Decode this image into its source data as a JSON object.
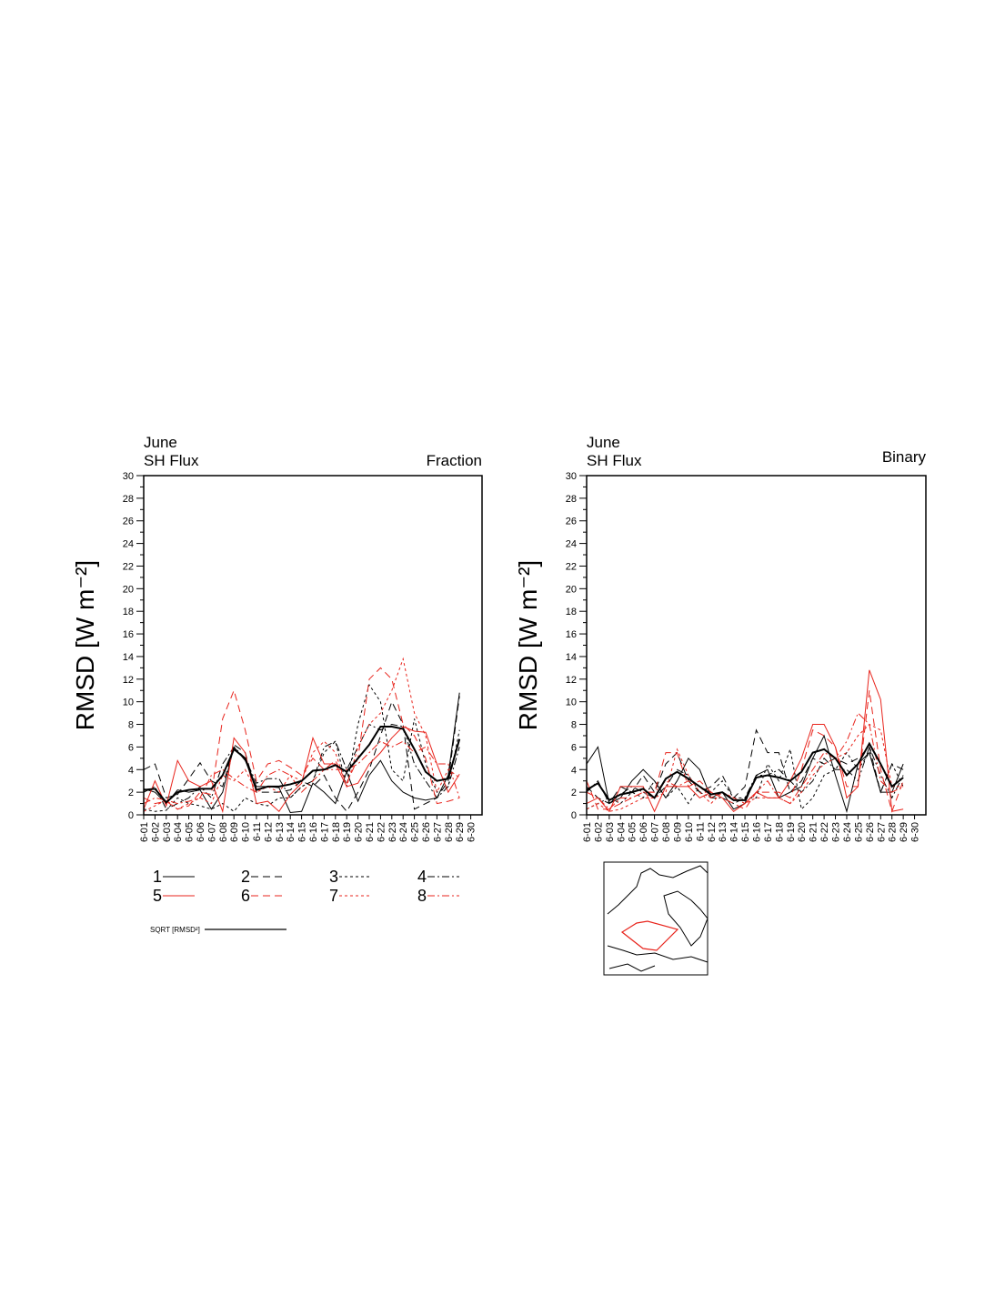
{
  "chart_data": [
    {
      "type": "line",
      "title": "June",
      "subtitle": "SH Flux",
      "right_title": "Fraction",
      "y_label": "RMSD [W m⁻²]",
      "categories": [
        "6-01",
        "6-02",
        "6-03",
        "6-04",
        "6-05",
        "6-06",
        "6-07",
        "6-08",
        "6-09",
        "6-10",
        "6-11",
        "6-12",
        "6-13",
        "6-14",
        "6-15",
        "6-16",
        "6-17",
        "6-18",
        "6-19",
        "6-20",
        "6-21",
        "6-22",
        "6-23",
        "6-24",
        "6-25",
        "6-26",
        "6-27",
        "6-28",
        "6-29",
        "6-30"
      ],
      "ylim": [
        0,
        30
      ],
      "yticks": [
        0,
        2,
        4,
        6,
        8,
        10,
        12,
        14,
        16,
        18,
        20,
        22,
        24,
        26,
        28,
        30
      ],
      "series": [
        {
          "name": "1",
          "color": "#000000",
          "dash": "",
          "width": 1,
          "values": [
            2.3,
            2.0,
            1.0,
            2.2,
            2.0,
            2.2,
            0.5,
            2.0,
            6.0,
            4.8,
            2.5,
            2.5,
            2.4,
            0.2,
            0.3,
            2.8,
            2.0,
            1.0,
            3.8,
            1.2,
            3.5,
            4.8,
            3.0,
            2.0,
            1.5,
            1.3,
            1.5,
            3.5,
            10.8,
            null
          ]
        },
        {
          "name": "2",
          "color": "#000000",
          "dash": "8,5",
          "width": 1,
          "values": [
            4.0,
            4.5,
            1.5,
            1.8,
            3.2,
            4.6,
            3.0,
            2.5,
            6.2,
            5.5,
            2.0,
            2.0,
            2.0,
            2.2,
            3.0,
            2.5,
            3.5,
            1.5,
            0.3,
            2.0,
            4.0,
            7.0,
            10.0,
            8.0,
            0.5,
            1.0,
            1.5,
            3.0,
            10.5,
            null
          ]
        },
        {
          "name": "3",
          "color": "#000000",
          "dash": "3,3",
          "width": 1,
          "values": [
            0.5,
            0.3,
            0.4,
            1.5,
            1.0,
            0.8,
            0.5,
            1.0,
            0.3,
            1.5,
            1.0,
            0.8,
            1.5,
            1.5,
            2.5,
            3.0,
            5.5,
            6.5,
            2.5,
            8.0,
            11.5,
            10.0,
            4.0,
            3.0,
            8.5,
            4.5,
            2.0,
            2.5,
            7.5,
            null
          ]
        },
        {
          "name": "4",
          "color": "#000000",
          "dash": "8,3,2,3",
          "width": 1,
          "values": [
            2.0,
            2.5,
            0.5,
            1.0,
            1.5,
            2.5,
            1.5,
            4.5,
            6.0,
            5.0,
            2.8,
            3.2,
            3.2,
            1.5,
            2.5,
            3.0,
            6.0,
            6.5,
            4.0,
            6.0,
            8.0,
            7.5,
            8.0,
            7.8,
            4.5,
            3.0,
            1.5,
            2.5,
            6.0,
            null
          ]
        },
        {
          "name": "5",
          "color": "#e8241c",
          "dash": "",
          "width": 1,
          "values": [
            0.5,
            3.0,
            0.8,
            4.8,
            3.0,
            2.5,
            3.0,
            0.3,
            6.8,
            5.5,
            1.0,
            1.2,
            0.3,
            1.8,
            2.8,
            6.8,
            4.5,
            4.5,
            2.5,
            2.8,
            4.5,
            5.5,
            6.8,
            7.8,
            7.4,
            7.3,
            4.5,
            2.0,
            3.6,
            null
          ]
        },
        {
          "name": "6",
          "color": "#e8241c",
          "dash": "8,5",
          "width": 1,
          "values": [
            1.5,
            1.0,
            1.2,
            0.5,
            0.8,
            2.0,
            1.8,
            8.5,
            11.0,
            7.5,
            3.0,
            4.5,
            4.8,
            4.2,
            3.5,
            5.0,
            4.0,
            4.8,
            2.8,
            5.0,
            12.0,
            13.0,
            12.0,
            8.0,
            7.0,
            5.0,
            1.0,
            1.2,
            1.5,
            null
          ]
        },
        {
          "name": "7",
          "color": "#e8241c",
          "dash": "3,3",
          "width": 1,
          "values": [
            0.3,
            0.8,
            1.3,
            0.5,
            1.0,
            1.5,
            1.0,
            3.5,
            3.0,
            4.0,
            2.0,
            2.5,
            2.0,
            3.5,
            3.0,
            5.5,
            6.5,
            5.5,
            2.5,
            6.0,
            8.0,
            9.0,
            11.0,
            13.8,
            9.0,
            7.0,
            2.0,
            4.0,
            3.3,
            null
          ]
        },
        {
          "name": "8",
          "color": "#e8241c",
          "dash": "8,3,2,3",
          "width": 1,
          "values": [
            1.0,
            1.5,
            1.3,
            1.0,
            1.2,
            1.5,
            3.5,
            4.0,
            3.2,
            2.5,
            2.0,
            3.5,
            4.0,
            3.5,
            2.0,
            3.0,
            4.0,
            4.0,
            4.0,
            4.5,
            5.5,
            6.5,
            6.0,
            6.5,
            5.5,
            6.0,
            4.5,
            4.5,
            1.5,
            null
          ]
        },
        {
          "name": "SQRT [RMSD²]",
          "color": "#000000",
          "dash": "",
          "width": 2,
          "values": [
            2.2,
            2.3,
            1.1,
            2.0,
            2.2,
            2.3,
            2.3,
            3.5,
            5.8,
            5.0,
            2.2,
            2.5,
            2.5,
            2.7,
            3.0,
            3.9,
            4.0,
            4.4,
            3.8,
            5.0,
            6.2,
            7.8,
            7.8,
            7.6,
            5.8,
            3.8,
            3.0,
            3.2,
            6.7,
            null
          ]
        }
      ]
    },
    {
      "type": "line",
      "title": "June",
      "subtitle": "SH Flux",
      "right_title": "Binary",
      "y_label": "RMSD [W m⁻²]",
      "categories": [
        "6-01",
        "6-02",
        "6-03",
        "6-04",
        "6-05",
        "6-06",
        "6-07",
        "6-08",
        "6-09",
        "6-10",
        "6-11",
        "6-12",
        "6-13",
        "6-14",
        "6-15",
        "6-16",
        "6-17",
        "6-18",
        "6-19",
        "6-20",
        "6-21",
        "6-22",
        "6-23",
        "6-24",
        "6-25",
        "6-26",
        "6-27",
        "6-28",
        "6-29",
        "6-30"
      ],
      "ylim": [
        0,
        30
      ],
      "yticks": [
        0,
        2,
        4,
        6,
        8,
        10,
        12,
        14,
        16,
        18,
        20,
        22,
        24,
        26,
        28,
        30
      ],
      "series": [
        {
          "color": "#000000",
          "dash": "",
          "width": 1,
          "values": [
            4.5,
            6.0,
            1.0,
            1.5,
            3.0,
            4.0,
            3.0,
            1.5,
            3.0,
            5.0,
            4.0,
            1.5,
            2.0,
            0.5,
            1.0,
            3.5,
            4.0,
            1.5,
            2.0,
            2.5,
            5.0,
            7.0,
            3.5,
            0.3,
            4.5,
            5.5,
            2.0,
            2.0,
            4.5,
            null
          ]
        },
        {
          "color": "#000000",
          "dash": "8,5",
          "width": 1,
          "values": [
            2.5,
            1.5,
            1.0,
            2.5,
            2.0,
            3.5,
            2.0,
            4.5,
            5.5,
            3.0,
            2.0,
            2.5,
            3.5,
            1.5,
            2.5,
            7.5,
            5.5,
            5.5,
            2.0,
            3.0,
            5.0,
            4.5,
            5.0,
            4.5,
            5.0,
            6.0,
            2.0,
            4.5,
            4.0,
            null
          ]
        },
        {
          "color": "#000000",
          "dash": "3,3",
          "width": 1,
          "values": [
            0.5,
            1.0,
            1.5,
            1.0,
            2.0,
            1.5,
            3.0,
            1.5,
            2.5,
            1.0,
            2.5,
            2.0,
            3.0,
            1.5,
            1.5,
            1.5,
            4.5,
            3.0,
            5.8,
            0.5,
            1.5,
            3.5,
            4.0,
            5.5,
            4.0,
            5.5,
            2.0,
            4.5,
            2.5,
            null
          ]
        },
        {
          "color": "#000000",
          "dash": "8,3,2,3",
          "width": 1,
          "values": [
            2.0,
            3.0,
            1.0,
            1.8,
            2.5,
            2.0,
            1.5,
            2.5,
            4.0,
            3.5,
            2.0,
            1.5,
            1.5,
            1.0,
            1.5,
            3.5,
            3.5,
            4.0,
            3.0,
            2.0,
            3.0,
            5.0,
            4.0,
            4.0,
            3.0,
            6.0,
            3.5,
            1.5,
            3.5,
            null
          ]
        },
        {
          "color": "#e8241c",
          "dash": "",
          "width": 1,
          "values": [
            1.0,
            1.5,
            0.3,
            2.5,
            2.5,
            2.5,
            0.3,
            2.5,
            2.5,
            2.5,
            1.5,
            2.0,
            1.5,
            0.3,
            1.0,
            2.0,
            1.5,
            1.5,
            3.0,
            5.0,
            8.0,
            8.0,
            6.0,
            1.5,
            2.5,
            12.8,
            10.2,
            0.3,
            0.5,
            null
          ]
        },
        {
          "color": "#e8241c",
          "dash": "8,5",
          "width": 1,
          "values": [
            3.0,
            0.5,
            0.5,
            1.0,
            1.5,
            2.0,
            2.0,
            5.5,
            5.5,
            2.5,
            3.0,
            2.0,
            1.5,
            1.0,
            0.5,
            2.0,
            2.0,
            2.0,
            1.5,
            4.0,
            7.5,
            7.0,
            6.0,
            2.5,
            2.5,
            11.0,
            4.0,
            0.3,
            3.0,
            null
          ]
        },
        {
          "color": "#e8241c",
          "dash": "3,3",
          "width": 1,
          "values": [
            0.5,
            1.0,
            0.3,
            0.5,
            1.0,
            1.5,
            1.5,
            2.0,
            5.8,
            3.5,
            2.0,
            1.0,
            2.0,
            1.5,
            1.0,
            1.5,
            1.5,
            1.5,
            1.0,
            2.0,
            3.5,
            4.5,
            5.0,
            5.5,
            7.0,
            8.0,
            7.5,
            2.5,
            2.5,
            null
          ]
        },
        {
          "color": "#e8241c",
          "dash": "8,3,2,3",
          "width": 1,
          "values": [
            2.0,
            1.5,
            0.5,
            1.5,
            1.5,
            2.0,
            2.0,
            3.0,
            2.5,
            3.0,
            2.5,
            1.5,
            2.0,
            1.5,
            1.0,
            2.0,
            3.0,
            1.5,
            1.0,
            2.5,
            4.0,
            5.5,
            5.0,
            6.5,
            9.0,
            8.0,
            3.0,
            2.0,
            2.5,
            null
          ]
        },
        {
          "color": "#000000",
          "dash": "",
          "width": 2,
          "values": [
            2.2,
            2.8,
            1.3,
            1.8,
            2.0,
            2.3,
            1.5,
            3.2,
            3.8,
            3.2,
            2.5,
            1.8,
            2.0,
            1.3,
            1.3,
            3.3,
            3.5,
            3.3,
            3.0,
            3.8,
            5.5,
            5.8,
            5.0,
            3.5,
            4.5,
            6.3,
            4.5,
            2.5,
            3.3,
            null
          ]
        }
      ]
    }
  ]
}
